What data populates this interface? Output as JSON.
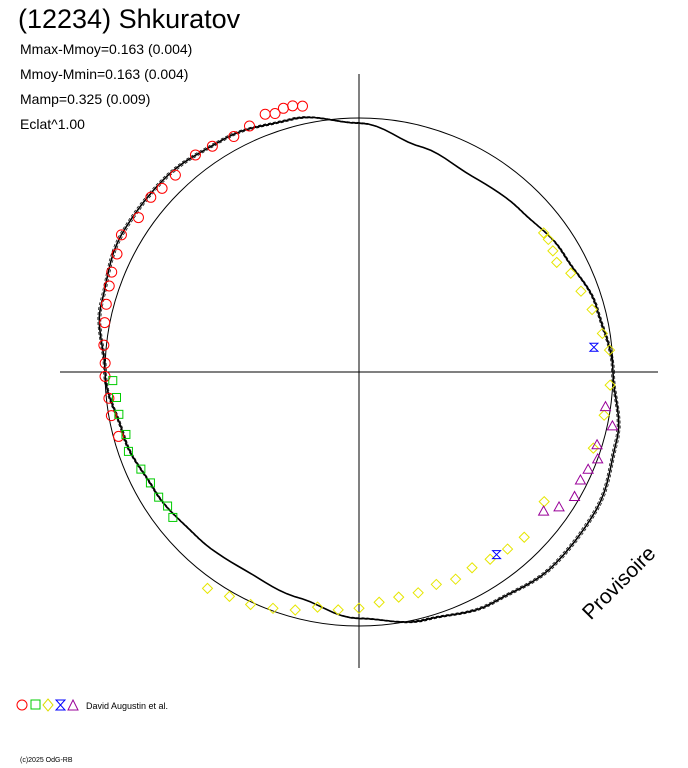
{
  "title": "(12234) Shkuratov",
  "stats": {
    "line1": "Mmax-Mmoy=0.163 (0.004)",
    "line2": "Mmoy-Mmin=0.163 (0.004)",
    "line3": "Mamp=0.325 (0.009)",
    "line4": "Eclat^1.00"
  },
  "credit": "David Augustin et al.",
  "copyright": "(c)2025 OdG-RB",
  "watermark": "Provisoire",
  "colors": {
    "red": "#ff0000",
    "green": "#00cc00",
    "yellow": "#ffff00",
    "blue": "#0000ff",
    "purple": "#990099",
    "axes": "#000000"
  },
  "chart_data": {
    "type": "scatter",
    "projection": "polar",
    "reference_circle_radius": 1.0,
    "amplitude": 0.325,
    "fit_curve": [
      [
        0,
        1.0
      ],
      [
        15,
        0.97
      ],
      [
        30,
        0.93
      ],
      [
        45,
        0.9
      ],
      [
        60,
        0.89
      ],
      [
        75,
        0.92
      ],
      [
        90,
        0.98
      ],
      [
        105,
        1.03
      ],
      [
        120,
        1.06
      ],
      [
        135,
        1.08
      ],
      [
        150,
        1.08
      ],
      [
        165,
        1.05
      ],
      [
        180,
        1.0
      ],
      [
        195,
        0.96
      ],
      [
        210,
        0.93
      ],
      [
        225,
        0.91
      ],
      [
        240,
        0.9
      ],
      [
        255,
        0.92
      ],
      [
        270,
        0.97
      ],
      [
        285,
        1.01
      ],
      [
        300,
        1.05
      ],
      [
        315,
        1.08
      ],
      [
        330,
        1.08
      ],
      [
        345,
        1.05
      ]
    ],
    "series": [
      {
        "marker": "circle",
        "color": "red",
        "points": [
          [
            102,
            1.07
          ],
          [
            104,
            1.08
          ],
          [
            106,
            1.08
          ],
          [
            108,
            1.07
          ],
          [
            110,
            1.08
          ],
          [
            114,
            1.06
          ],
          [
            118,
            1.05
          ],
          [
            123,
            1.06
          ],
          [
            127,
            1.07
          ],
          [
            133,
            1.06
          ],
          [
            137,
            1.06
          ],
          [
            140,
            1.07
          ],
          [
            145,
            1.06
          ],
          [
            150,
            1.08
          ],
          [
            154,
            1.06
          ],
          [
            158,
            1.05
          ],
          [
            161,
            1.04
          ],
          [
            165,
            1.03
          ],
          [
            169,
            1.02
          ],
          [
            174,
            1.01
          ],
          [
            178,
            1.0
          ],
          [
            181,
            1.0
          ],
          [
            186,
            0.99
          ],
          [
            190,
            0.99
          ],
          [
            195,
            0.98
          ]
        ]
      },
      {
        "marker": "square",
        "color": "green",
        "points": [
          [
            182,
            0.97
          ],
          [
            186,
            0.96
          ],
          [
            190,
            0.96
          ],
          [
            195,
            0.95
          ],
          [
            199,
            0.96
          ],
          [
            204,
            0.94
          ],
          [
            208,
            0.93
          ],
          [
            212,
            0.93
          ],
          [
            215,
            0.92
          ],
          [
            218,
            0.93
          ]
        ]
      },
      {
        "marker": "diamond",
        "color": "yellow",
        "points": [
          [
            37,
            0.91
          ],
          [
            35,
            0.91
          ],
          [
            32,
            0.9
          ],
          [
            29,
            0.89
          ],
          [
            25,
            0.92
          ],
          [
            20,
            0.93
          ],
          [
            15,
            0.95
          ],
          [
            9,
            0.97
          ],
          [
            5,
            0.99
          ],
          [
            -3,
            0.99
          ],
          [
            -10,
            0.98
          ],
          [
            -18,
            0.97
          ],
          [
            -35,
            0.89
          ],
          [
            -45,
            0.92
          ],
          [
            -50,
            0.91
          ],
          [
            -55,
            0.9
          ],
          [
            -60,
            0.89
          ],
          [
            -65,
            0.9
          ],
          [
            -70,
            0.89
          ],
          [
            -75,
            0.9
          ],
          [
            -80,
            0.9
          ],
          [
            -85,
            0.91
          ],
          [
            -90,
            0.93
          ],
          [
            -95,
            0.94
          ],
          [
            -100,
            0.94
          ],
          [
            -105,
            0.97
          ],
          [
            -110,
            0.99
          ],
          [
            -115,
            1.01
          ],
          [
            -120,
            1.02
          ],
          [
            -125,
            1.04
          ]
        ]
      },
      {
        "marker": "hourglass",
        "color": "blue",
        "points": [
          [
            6,
            0.93
          ],
          [
            -53,
            0.9
          ]
        ]
      },
      {
        "marker": "triangle",
        "color": "purple",
        "points": [
          [
            -8,
            0.98
          ],
          [
            -12,
            1.02
          ],
          [
            -17,
            0.98
          ],
          [
            -20,
            1.0
          ],
          [
            -23,
            0.98
          ],
          [
            -26,
            0.97
          ],
          [
            -30,
            0.98
          ],
          [
            -34,
            0.95
          ],
          [
            -37,
            0.91
          ]
        ]
      }
    ]
  }
}
